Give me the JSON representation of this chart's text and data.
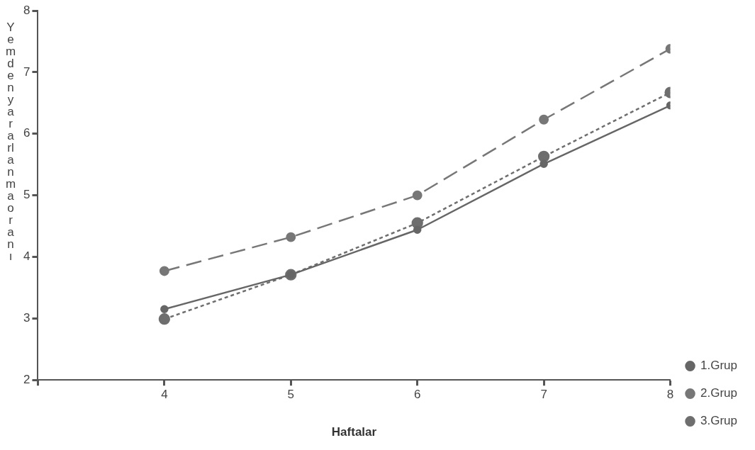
{
  "chart_data": {
    "type": "line",
    "xlabel": "Haftalar",
    "ylabel": "Yemden yararlanma oranı",
    "xlim": [
      3,
      8
    ],
    "xticks": [
      {
        "value": 3,
        "label": null
      },
      4,
      5,
      6,
      7,
      8
    ],
    "ylim": [
      2,
      8
    ],
    "yticks": [
      2,
      3,
      4,
      5,
      6,
      7,
      8
    ],
    "grid": false,
    "legend": "bottom right",
    "marker": "circle",
    "x": [
      4,
      5,
      6,
      7,
      8
    ],
    "series": [
      {
        "name": "1.Grup",
        "color": "#666666",
        "line_style": "solid",
        "values": [
          3.15,
          3.71,
          4.44,
          5.51,
          6.46
        ]
      },
      {
        "name": "2.Grup",
        "color": "#777777",
        "line_style": "dashed",
        "values": [
          3.77,
          4.32,
          5.0,
          6.23,
          7.38
        ]
      },
      {
        "name": "3.Grup",
        "color": "#6e6e6e",
        "line_style": "dotted",
        "values": [
          2.99,
          3.71,
          4.55,
          5.63,
          6.67
        ]
      }
    ]
  }
}
